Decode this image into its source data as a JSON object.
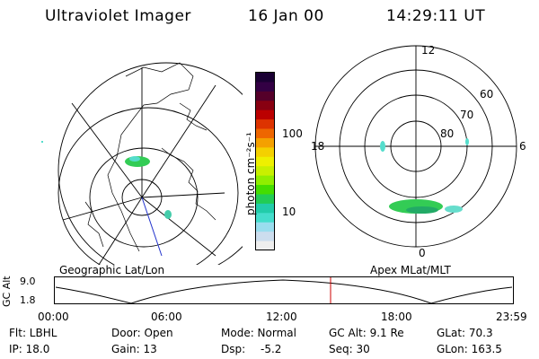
{
  "header": {
    "instrument": "Ultraviolet Imager",
    "date": "16 Jan 00",
    "time": "14:29:11 UT"
  },
  "colors": {
    "grid": "#000000",
    "marker": "#cc0000",
    "aurora_green": "#33cc55",
    "aurora_cyan": "#55ddcc"
  },
  "colorbar": {
    "units": "photon cm⁻²s⁻¹",
    "ticks": [
      {
        "label": "100",
        "value": 100
      },
      {
        "label": "10",
        "value": 10
      }
    ],
    "colors": [
      "#1a0033",
      "#330044",
      "#55002a",
      "#880011",
      "#bb0000",
      "#dd3300",
      "#ee6600",
      "#f4a000",
      "#f4d000",
      "#eef000",
      "#c8f000",
      "#90ee00",
      "#44dd00",
      "#22cc55",
      "#22ccaa",
      "#44ddcc",
      "#99ddee",
      "#ccddee",
      "#eeeeee"
    ]
  },
  "left_map": {
    "caption": "Geographic Lat/Lon"
  },
  "right_map": {
    "caption": "Apex MLat/MLT",
    "mlt_labels": [
      "12",
      "18",
      "6",
      "0"
    ],
    "lat_labels": [
      "60",
      "70",
      "80"
    ]
  },
  "timeline": {
    "ylabel": "GC Alt",
    "yticks": [
      "9.0",
      "1.8"
    ],
    "xticks": [
      "00:00",
      "06:00",
      "12:00",
      "18:00",
      "23:59"
    ],
    "marker_time": "14:29"
  },
  "info": {
    "filter": "Flt: LBHL",
    "ip": "IP: 18.0",
    "door": "Door: Open",
    "gain": "Gain: 13",
    "mode": "Mode: Normal",
    "dsp_label": "Dsp:",
    "dsp_value": "-5.2",
    "gc_alt": "GC Alt: 9.1 Re",
    "seq": "Seq: 30",
    "glat": "GLat: 70.3",
    "glon": "GLon: 163.5"
  }
}
